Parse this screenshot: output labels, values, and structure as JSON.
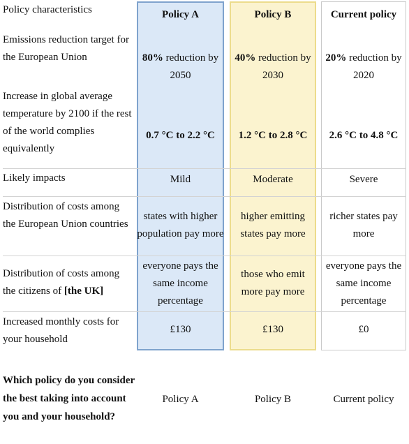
{
  "header": {
    "row_title": "Policy characteristics",
    "columns": [
      "Policy A",
      "Policy B",
      "Current policy"
    ]
  },
  "rows": {
    "target": {
      "label": "Emissions reduction target for the European Union",
      "a": {
        "pct": "80%",
        "text": " reduction by 2050"
      },
      "b": {
        "pct": "40%",
        "text": " reduction by 2030"
      },
      "c": {
        "pct": "20%",
        "text": " reduction by 2020"
      }
    },
    "temperature": {
      "label": "Increase in global average temperature by 2100 if the rest of the world complies equivalently",
      "a": "0.7 °C to 2.2 °C",
      "b": "1.2 °C to 2.8 °C",
      "c": "2.6 °C to 4.8 °C"
    },
    "impacts": {
      "label": "Likely impacts",
      "a": "Mild",
      "b": "Moderate",
      "c": "Severe"
    },
    "eu_costs": {
      "label": "Distribution of costs among the European Union countries",
      "a": "states with higher population pay more",
      "b": "higher emitting states pay more",
      "c": "richer states pay more"
    },
    "citizen_costs": {
      "label_prefix": "Distribution of costs among the citizens of ",
      "label_bold": "[the UK]",
      "a": "everyone pays the same income percentage",
      "b": "those who emit more pay more",
      "c": "everyone pays the same income percentage"
    },
    "monthly": {
      "label": "Increased monthly costs for your household",
      "a": "£130",
      "b": "£130",
      "c": "£0"
    }
  },
  "question": {
    "text": "Which policy do you consider the best taking into account you and your household?",
    "options": [
      "Policy A",
      "Policy B",
      "Current policy"
    ]
  },
  "colors": {
    "policy_a_fill": "#dbe8f7",
    "policy_a_border": "#7fa3cd",
    "policy_b_fill": "#fbf3cf",
    "policy_b_border": "#ecdc8c"
  }
}
